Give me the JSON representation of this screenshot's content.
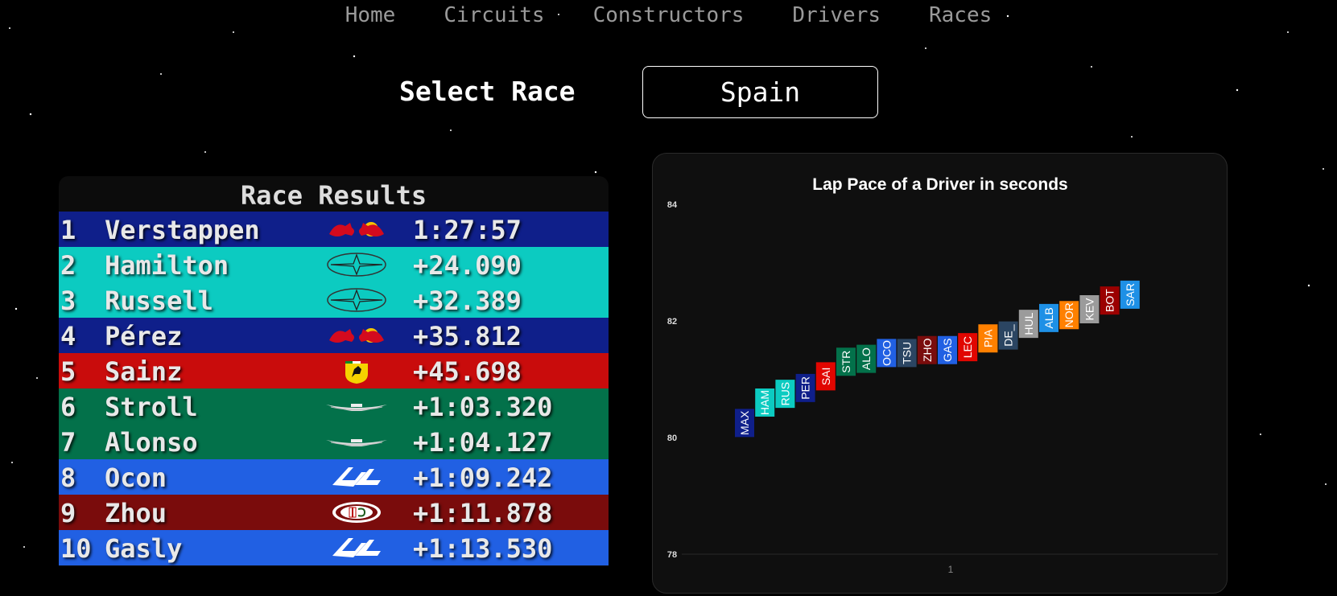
{
  "nav": {
    "items": [
      "Home",
      "Circuits",
      "Constructors",
      "Drivers",
      "Races"
    ]
  },
  "select": {
    "label": "Select Race",
    "value": "Spain"
  },
  "results": {
    "title": "Race Results",
    "rows": [
      {
        "pos": "1",
        "name": "Verstappen",
        "team": "red-bull",
        "time": "1:27:57",
        "color": "#0f1f8a"
      },
      {
        "pos": "2",
        "name": "Hamilton",
        "team": "mercedes",
        "time": "+24.090",
        "color": "#0ccbc1"
      },
      {
        "pos": "3",
        "name": "Russell",
        "team": "mercedes",
        "time": "+32.389",
        "color": "#0ccbc1"
      },
      {
        "pos": "4",
        "name": "Pérez",
        "team": "red-bull",
        "time": "+35.812",
        "color": "#0f1f8a"
      },
      {
        "pos": "5",
        "name": "Sainz",
        "team": "ferrari",
        "time": "+45.698",
        "color": "#c90c0c"
      },
      {
        "pos": "6",
        "name": "Stroll",
        "team": "aston-martin",
        "time": "+1:03.320",
        "color": "#03714a"
      },
      {
        "pos": "7",
        "name": "Alonso",
        "team": "aston-martin",
        "time": "+1:04.127",
        "color": "#03714a"
      },
      {
        "pos": "8",
        "name": "Ocon",
        "team": "alpine",
        "time": "+1:09.242",
        "color": "#2160e3"
      },
      {
        "pos": "9",
        "name": "Zhou",
        "team": "alfa-romeo",
        "time": "+1:11.878",
        "color": "#7a0c0c"
      },
      {
        "pos": "10",
        "name": "Gasly",
        "team": "alpine",
        "time": "+1:13.530",
        "color": "#2160e3"
      }
    ]
  },
  "chart_data": {
    "type": "bar",
    "title": "Lap Pace of a Driver in seconds",
    "xlabel": "",
    "ylabel": "",
    "ylim": [
      78,
      84
    ],
    "yticks": [
      "78",
      "80",
      "82",
      "84"
    ],
    "xticks": [
      "1"
    ],
    "categories": [
      "MAX",
      "HAM",
      "RUS",
      "PER",
      "SAI",
      "STR",
      "ALO",
      "OCO",
      "TSU",
      "ZHO",
      "GAS",
      "LEC",
      "PIA",
      "DE_",
      "HUL",
      "ALB",
      "NOR",
      "KEV",
      "BOT",
      "SAR"
    ],
    "values": [
      80.25,
      80.6,
      80.75,
      80.85,
      81.05,
      81.3,
      81.35,
      81.45,
      81.45,
      81.5,
      81.5,
      81.55,
      81.7,
      81.75,
      81.95,
      82.05,
      82.1,
      82.2,
      82.35,
      82.45
    ],
    "colors": [
      "#0f1f8a",
      "#0ccbc1",
      "#0ccbc1",
      "#0f1f8a",
      "#e10600",
      "#03714a",
      "#03714a",
      "#2160e3",
      "#2b4562",
      "#7a0c0c",
      "#2160e3",
      "#e10600",
      "#ff8000",
      "#2b4562",
      "#9b9b9b",
      "#1e90e6",
      "#ff8000",
      "#9b9b9b",
      "#9b0000",
      "#1e90e6"
    ]
  }
}
